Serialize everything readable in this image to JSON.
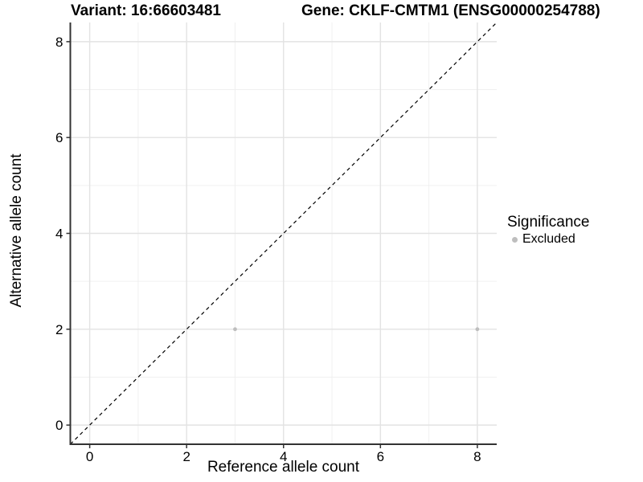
{
  "chart_data": {
    "type": "scatter",
    "title_left": "Variant: 16:66603481",
    "title_right": "Gene: CKLF-CMTM1 (ENSG00000254788)",
    "xlabel": "Reference allele count",
    "ylabel": "Alternative allele count",
    "xlim": [
      -0.4,
      8.4
    ],
    "ylim": [
      -0.4,
      8.4
    ],
    "xticks": [
      0,
      2,
      4,
      6,
      8
    ],
    "yticks": [
      0,
      2,
      4,
      6,
      8
    ],
    "xticks_minor": [
      1,
      3,
      5,
      7
    ],
    "yticks_minor": [
      1,
      3,
      5,
      7
    ],
    "grid": "major and minor gridlines, light gray on white panel",
    "reference_line": {
      "kind": "identity y = x",
      "style": "dashed",
      "color": "#000000"
    },
    "series": [
      {
        "name": "Excluded",
        "marker": "circle",
        "color": "#bebebe",
        "points": [
          {
            "x": 3,
            "y": 2
          },
          {
            "x": 8,
            "y": 2
          }
        ]
      }
    ],
    "legend": {
      "title": "Significance",
      "position": "right",
      "entries": [
        {
          "label": "Excluded",
          "color": "#bebebe",
          "marker": "circle"
        }
      ]
    },
    "colors": {
      "background": "#ffffff",
      "grid_major": "#e3e3e3",
      "grid_minor": "#f0f0f0",
      "axis_line": "#333333",
      "tick": "#333333",
      "text": "#000000",
      "point": "#bebebe"
    }
  }
}
